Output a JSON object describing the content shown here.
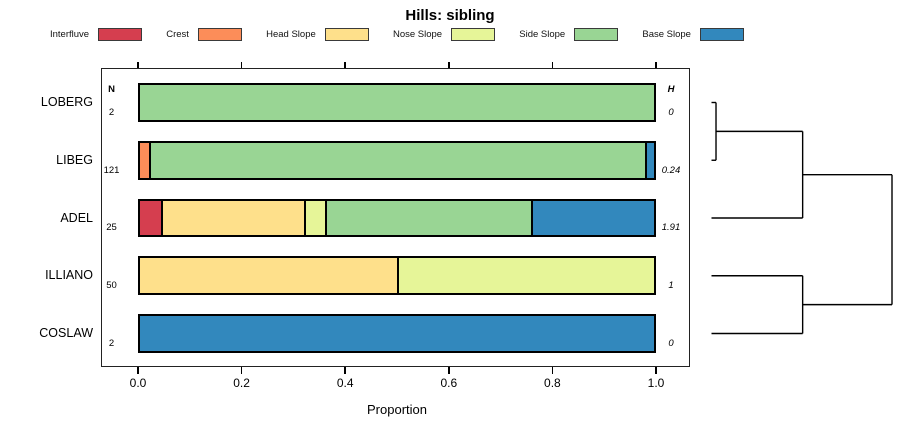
{
  "chart_data": {
    "type": "bar",
    "subtype": "horizontal-stacked-proportion-with-dendrogram",
    "title": "Hills: sibling",
    "xlabel": "Proportion",
    "xlim": [
      0,
      1
    ],
    "grid": false,
    "legend_position": "top",
    "x_ticks": [
      {
        "label": "0.0",
        "value": 0.0
      },
      {
        "label": "0.2",
        "value": 0.2
      },
      {
        "label": "0.4",
        "value": 0.4
      },
      {
        "label": "0.6",
        "value": 0.6
      },
      {
        "label": "0.8",
        "value": 0.8
      },
      {
        "label": "1.0",
        "value": 1.0
      }
    ],
    "categories": [
      "Interfluve",
      "Crest",
      "Head Slope",
      "Nose Slope",
      "Side Slope",
      "Base Slope"
    ],
    "colors": [
      "#D53E4F",
      "#FC8D59",
      "#FEE08B",
      "#E6F598",
      "#99D594",
      "#3288BD"
    ],
    "n_header": "N",
    "h_header": "H",
    "rows": [
      {
        "label": "LOBERG",
        "n": "2",
        "h": "0",
        "values": [
          0,
          0,
          0,
          0,
          1.0,
          0
        ]
      },
      {
        "label": "LIBEG",
        "n": "121",
        "h": "0.24",
        "values": [
          0,
          0.017,
          0,
          0,
          0.966,
          0.017
        ]
      },
      {
        "label": "ADEL",
        "n": "25",
        "h": "1.91",
        "values": [
          0.04,
          0,
          0.28,
          0.04,
          0.4,
          0.24
        ]
      },
      {
        "label": "ILLIANO",
        "n": "50",
        "h": "1",
        "values": [
          0,
          0,
          0.5,
          0.5,
          0,
          0
        ]
      },
      {
        "label": "COSLAW",
        "n": "2",
        "h": "0",
        "values": [
          0,
          0,
          0,
          0,
          0,
          1.0
        ]
      }
    ]
  },
  "dendrogram": {
    "note": "segments as [t1,row1,t2,row2]; t is normalized merge height 0..1, row is leaf row index",
    "line_color": "#000000",
    "segments": [
      [
        0,
        0,
        0.025,
        0
      ],
      [
        0,
        1,
        0.025,
        1
      ],
      [
        0.025,
        0,
        0.025,
        1
      ],
      [
        0.025,
        0.5,
        0.505,
        0.5
      ],
      [
        0,
        2,
        0.505,
        2
      ],
      [
        0.505,
        0.5,
        0.505,
        2
      ],
      [
        0.505,
        1.25,
        1,
        1.25
      ],
      [
        0,
        3,
        0.505,
        3
      ],
      [
        0,
        4,
        0.505,
        4
      ],
      [
        0.505,
        3,
        0.505,
        4
      ],
      [
        0.505,
        3.5,
        1,
        3.5
      ],
      [
        1,
        1.25,
        1,
        3.5
      ]
    ]
  }
}
